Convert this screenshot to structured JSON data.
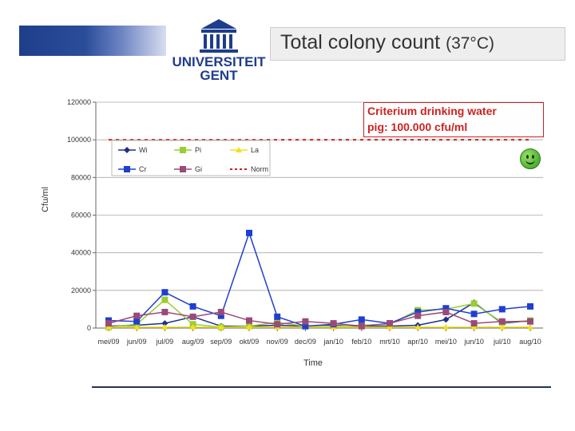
{
  "header": {
    "university_line1": "UNIVERSITEIT",
    "university_line2": "GENT",
    "title": "Total colony count",
    "title_unit": "(37°C)"
  },
  "criterium": {
    "line1": "Criterium drinking water",
    "line2": "pig: 100.000 cfu/ml"
  },
  "colors": {
    "Wi": "#1f2f8a",
    "Pi": "#9acd32",
    "La": "#f0e020",
    "Cr": "#1f3fd0",
    "Gi": "#9a4a7a",
    "Norm": "#cc2222"
  },
  "chart_data": {
    "type": "line",
    "title": "",
    "xlabel": "Time",
    "ylabel": "Cfu/ml",
    "ylim": [
      0,
      120000
    ],
    "yticks": [
      0,
      20000,
      40000,
      60000,
      80000,
      100000,
      120000
    ],
    "ytick_labels": [
      "0",
      "20000",
      "40000",
      "60000",
      "80000",
      "100000",
      "120000"
    ],
    "grid": "horizontal",
    "legend": "top-left",
    "x": [
      "mei/09",
      "jun/09",
      "jul/09",
      "aug/09",
      "sep/09",
      "okt/09",
      "nov/09",
      "dec/09",
      "jan/10",
      "feb/10",
      "mrt/10",
      "apr/10",
      "mei/10",
      "jun/10",
      "jul/10",
      "aug/10"
    ],
    "series": [
      {
        "name": "Wi",
        "marker": "diamond",
        "values": [
          1000,
          1500,
          2500,
          6000,
          1000,
          1000,
          1500,
          1000,
          1500,
          1000,
          1000,
          1500,
          4500,
          13500,
          2500,
          4000
        ]
      },
      {
        "name": "Pi",
        "marker": "square",
        "values": [
          500,
          2000,
          15000,
          2000,
          500,
          1000,
          3000,
          1000,
          1000,
          1500,
          2000,
          9500,
          10000,
          13000,
          3000,
          4000
        ]
      },
      {
        "name": "La",
        "marker": "triangle",
        "values": [
          500,
          500,
          500,
          500,
          500,
          500,
          500,
          500,
          500,
          500,
          500,
          500,
          500,
          500,
          500,
          500
        ]
      },
      {
        "name": "Cr",
        "marker": "square",
        "values": [
          4000,
          3500,
          19000,
          11500,
          6500,
          50500,
          6000,
          1000,
          2000,
          4500,
          2500,
          8500,
          10500,
          7500,
          10000,
          11500
        ]
      },
      {
        "name": "Gi",
        "marker": "square",
        "values": [
          2500,
          6500,
          8500,
          6000,
          8500,
          4000,
          2000,
          3500,
          2500,
          1000,
          2500,
          6500,
          8500,
          2500,
          3500,
          3500
        ]
      },
      {
        "name": "Norm",
        "line_style": "dashed",
        "values": [
          100000,
          100000,
          100000,
          100000,
          100000,
          100000,
          100000,
          100000,
          100000,
          100000,
          100000,
          100000,
          100000,
          100000,
          100000,
          100000
        ]
      }
    ]
  }
}
